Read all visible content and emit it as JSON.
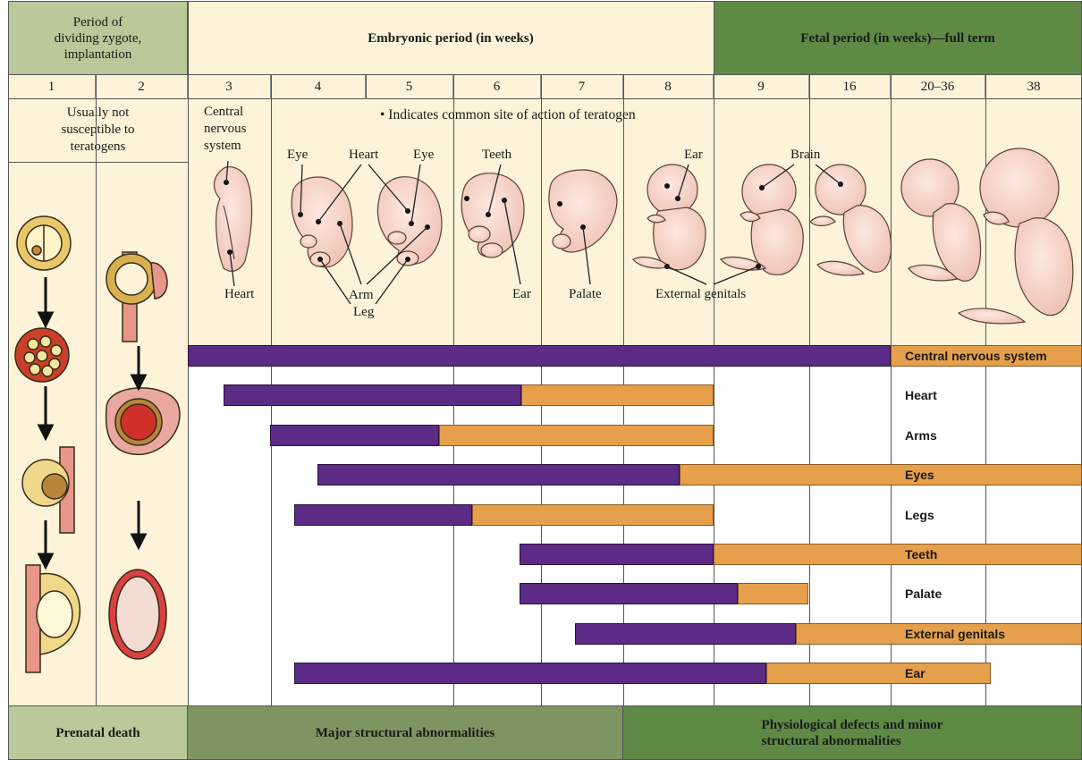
{
  "header": {
    "zygote": "Period of\ndividing zygote,\nimplantation",
    "embryonic": "Embryonic period (in weeks)",
    "fetal": "Fetal period (in weeks)—full term"
  },
  "weeks": [
    "1",
    "2",
    "3",
    "4",
    "5",
    "6",
    "7",
    "8",
    "9",
    "16",
    "20–36",
    "38"
  ],
  "not_susceptible": "Usually not\nsusceptible to\nteratogens",
  "legend_note": "• Indicates common site of action of teratogen",
  "labels": {
    "cns": "Central\nnervous\nsystem",
    "heart3": "Heart",
    "eye1": "Eye",
    "heart": "Heart",
    "eye2": "Eye",
    "arm": "Arm",
    "leg": "Leg",
    "teeth": "Teeth",
    "ear6": "Ear",
    "palate": "Palate",
    "ear8": "Ear",
    "brain": "Brain",
    "genitals": "External genitals"
  },
  "bars": [
    {
      "label": "Central nervous system",
      "highlight": true
    },
    {
      "label": "Heart",
      "highlight": false
    },
    {
      "label": "Arms",
      "highlight": false
    },
    {
      "label": "Eyes",
      "highlight": true
    },
    {
      "label": "Legs",
      "highlight": false
    },
    {
      "label": "Teeth",
      "highlight": true
    },
    {
      "label": "Palate",
      "highlight": false
    },
    {
      "label": "External genitals",
      "highlight": true
    },
    {
      "label": "Ear",
      "highlight": true
    }
  ],
  "footer": {
    "death": "Prenatal death",
    "major": "Major structural abnormalities",
    "minor": "Physiological defects and minor\nstructural abnormalities"
  },
  "colors": {
    "major_sensitivity": "#5b2b86",
    "minor_sensitivity": "#e69f4a",
    "zygote_header": "#b9c99a",
    "fetal_header": "#5e8a45",
    "cream": "#fcf3d8",
    "footer_major": "#7d9560",
    "footer_minor": "#5e8a45"
  }
}
